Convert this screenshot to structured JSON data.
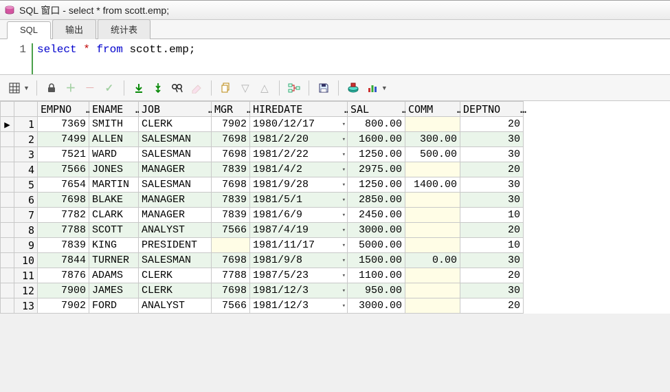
{
  "window": {
    "title": "SQL 窗口 - select * from scott.emp;"
  },
  "tabs": [
    {
      "label": "SQL",
      "active": true
    },
    {
      "label": "输出",
      "active": false
    },
    {
      "label": "统计表",
      "active": false
    }
  ],
  "editor": {
    "line_number": "1",
    "kw_select": "select",
    "op_star": "*",
    "kw_from": "from",
    "identifier": "scott.emp",
    "terminator": ";"
  },
  "toolbar": {
    "grid_icon": "⊞",
    "lock": "🔒",
    "plus": "＋",
    "minus": "－",
    "check": "✓",
    "fetch_page": "⤓",
    "fetch_all": "⤓",
    "find": "🔍",
    "eraser": "✎",
    "copy": "⧉",
    "down": "▽",
    "up": "△",
    "tree": "☷",
    "save": "💾",
    "export": "🖴",
    "chart": "📊"
  },
  "grid": {
    "columns": [
      {
        "key": "EMPNO",
        "label": "EMPNO",
        "align": "num",
        "cls": "col-empno"
      },
      {
        "key": "ENAME",
        "label": "ENAME",
        "align": "txt",
        "cls": "col-ename"
      },
      {
        "key": "JOB",
        "label": "JOB",
        "align": "txt",
        "cls": "col-job"
      },
      {
        "key": "MGR",
        "label": "MGR",
        "align": "num",
        "cls": "col-mgr"
      },
      {
        "key": "HIREDATE",
        "label": "HIREDATE",
        "align": "txt",
        "cls": "col-hiredate",
        "date": true
      },
      {
        "key": "SAL",
        "label": "SAL",
        "align": "num",
        "cls": "col-sal"
      },
      {
        "key": "COMM",
        "label": "COMM",
        "align": "num",
        "cls": "col-comm"
      },
      {
        "key": "DEPTNO",
        "label": "DEPTNO",
        "align": "num",
        "cls": "col-deptno"
      }
    ],
    "rows": [
      {
        "n": 1,
        "marker": "▶",
        "EMPNO": "7369",
        "ENAME": "SMITH",
        "JOB": "CLERK",
        "MGR": "7902",
        "HIREDATE": "1980/12/17",
        "SAL": "800.00",
        "COMM": null,
        "DEPTNO": "20"
      },
      {
        "n": 2,
        "EMPNO": "7499",
        "ENAME": "ALLEN",
        "JOB": "SALESMAN",
        "MGR": "7698",
        "HIREDATE": "1981/2/20",
        "SAL": "1600.00",
        "COMM": "300.00",
        "DEPTNO": "30"
      },
      {
        "n": 3,
        "EMPNO": "7521",
        "ENAME": "WARD",
        "JOB": "SALESMAN",
        "MGR": "7698",
        "HIREDATE": "1981/2/22",
        "SAL": "1250.00",
        "COMM": "500.00",
        "DEPTNO": "30"
      },
      {
        "n": 4,
        "EMPNO": "7566",
        "ENAME": "JONES",
        "JOB": "MANAGER",
        "MGR": "7839",
        "HIREDATE": "1981/4/2",
        "SAL": "2975.00",
        "COMM": null,
        "DEPTNO": "20"
      },
      {
        "n": 5,
        "EMPNO": "7654",
        "ENAME": "MARTIN",
        "JOB": "SALESMAN",
        "MGR": "7698",
        "HIREDATE": "1981/9/28",
        "SAL": "1250.00",
        "COMM": "1400.00",
        "DEPTNO": "30"
      },
      {
        "n": 6,
        "EMPNO": "7698",
        "ENAME": "BLAKE",
        "JOB": "MANAGER",
        "MGR": "7839",
        "HIREDATE": "1981/5/1",
        "SAL": "2850.00",
        "COMM": null,
        "DEPTNO": "30"
      },
      {
        "n": 7,
        "EMPNO": "7782",
        "ENAME": "CLARK",
        "JOB": "MANAGER",
        "MGR": "7839",
        "HIREDATE": "1981/6/9",
        "SAL": "2450.00",
        "COMM": null,
        "DEPTNO": "10"
      },
      {
        "n": 8,
        "EMPNO": "7788",
        "ENAME": "SCOTT",
        "JOB": "ANALYST",
        "MGR": "7566",
        "HIREDATE": "1987/4/19",
        "SAL": "3000.00",
        "COMM": null,
        "DEPTNO": "20"
      },
      {
        "n": 9,
        "EMPNO": "7839",
        "ENAME": "KING",
        "JOB": "PRESIDENT",
        "MGR": null,
        "HIREDATE": "1981/11/17",
        "SAL": "5000.00",
        "COMM": null,
        "DEPTNO": "10"
      },
      {
        "n": 10,
        "EMPNO": "7844",
        "ENAME": "TURNER",
        "JOB": "SALESMAN",
        "MGR": "7698",
        "HIREDATE": "1981/9/8",
        "SAL": "1500.00",
        "COMM": "0.00",
        "DEPTNO": "30"
      },
      {
        "n": 11,
        "EMPNO": "7876",
        "ENAME": "ADAMS",
        "JOB": "CLERK",
        "MGR": "7788",
        "HIREDATE": "1987/5/23",
        "SAL": "1100.00",
        "COMM": null,
        "DEPTNO": "20"
      },
      {
        "n": 12,
        "EMPNO": "7900",
        "ENAME": "JAMES",
        "JOB": "CLERK",
        "MGR": "7698",
        "HIREDATE": "1981/12/3",
        "SAL": "950.00",
        "COMM": null,
        "DEPTNO": "30"
      },
      {
        "n": 13,
        "EMPNO": "7902",
        "ENAME": "FORD",
        "JOB": "ANALYST",
        "MGR": "7566",
        "HIREDATE": "1981/12/3",
        "SAL": "3000.00",
        "COMM": null,
        "DEPTNO": "20"
      }
    ],
    "stripe_even_color": "#eaf5ea",
    "null_bg_color": "#fffde6",
    "header_bg_color": "#f4f4f4",
    "border_color": "#c8c8c8"
  }
}
